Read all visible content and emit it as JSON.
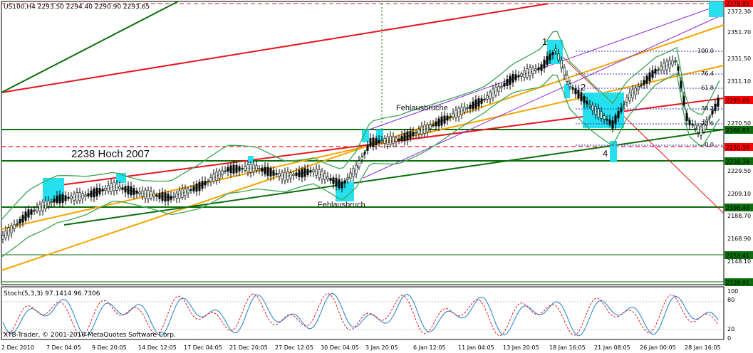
{
  "header": {
    "symbol_info": "US100,H4  2293.50 2294.40 2290.90 2293.65",
    "stoch_info": "Stoch(5,3,3) 97.1414 96.7306",
    "copyright": "XTB-Trader, © 2001-2010 MetaQuotes Software Corp."
  },
  "annotations": {
    "hoch_2007": "2238 Hoch 2007",
    "fehlausbruch": "Fehlausbruch",
    "fehlausbrueche": "Fehlausbrüche",
    "wave_1": "1",
    "wave_2": "2",
    "wave_4": "4"
  },
  "fib_levels": [
    {
      "label": "100.0"
    },
    {
      "label": "76.4"
    },
    {
      "label": "61.8"
    },
    {
      "label": "38.2"
    },
    {
      "label": "23.6"
    },
    {
      "label": "0.0"
    }
  ],
  "price_axis": [
    "2372.30",
    "2351.70",
    "2331.50",
    "2311.10",
    "2290.95",
    "2270.50",
    "2229.50",
    "2209.10",
    "2188.70",
    "2168.90",
    "2148.10"
  ],
  "price_tags": [
    {
      "label": "2378.85",
      "bg": "#ff0000",
      "fg": "#ffffff"
    },
    {
      "label": "2293.65",
      "bg": "#ff0000",
      "fg": "#ffffff"
    },
    {
      "label": "2266.87",
      "bg": "#0a6e0a",
      "fg": "#ffffff"
    },
    {
      "label": "2250.50",
      "bg": "#ff0000",
      "fg": "#ffffff"
    },
    {
      "label": "2238.34",
      "bg": "#0a6e0a",
      "fg": "#ffffff"
    },
    {
      "label": "2196.40",
      "bg": "#0a6e0a",
      "fg": "#ffffff"
    },
    {
      "label": "2153.41",
      "bg": "#0a6e0a",
      "fg": "#ffffff"
    },
    {
      "label": "2128.91",
      "bg": "#0a6e0a",
      "fg": "#ffffff"
    }
  ],
  "stoch_axis": [
    "100",
    "80",
    "20",
    "0"
  ],
  "time_axis": [
    "2 Dec 2010",
    "7 Dec 04:05",
    "9 Dec 20:05",
    "14 Dec 12:05",
    "17 Dec 04:05",
    "21 Dec 20:05",
    "27 Dec 12:05",
    "30 Dec 04:05",
    "3 Jan 20:05",
    "6 Jan 12:05",
    "11 Jan 04:05",
    "13 Jan 20:05",
    "18 Jan 16:05",
    "21 Jan 08:05",
    "26 Jan 00:05",
    "28 Jan 16:05"
  ],
  "colors": {
    "red_line": "#e8141e",
    "orange_line": "#f5a300",
    "green_line": "#0a6e0a",
    "bollinger": "#3aa655",
    "purple": "#8a2be2",
    "candle": "#000000",
    "highlight": "#26e0f0",
    "fib": "#3333cc"
  }
}
